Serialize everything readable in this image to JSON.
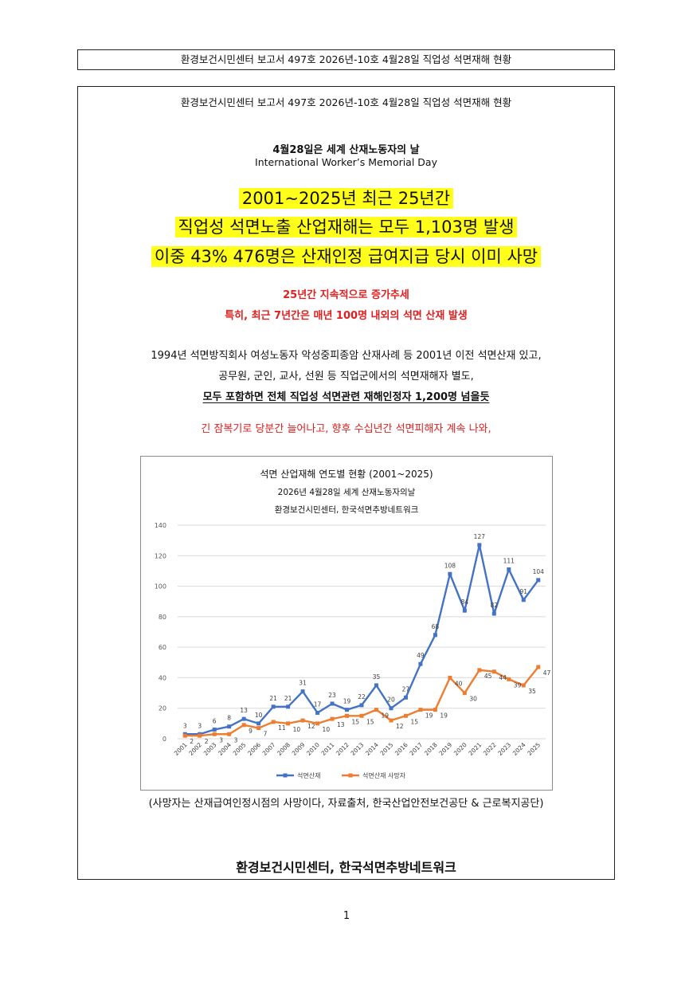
{
  "header": {
    "text": "환경보건시민센터 보고서 497호 2026년-10호 4월28일 직업성 석면재해 현황"
  },
  "report": {
    "repeat_title": "환경보건시민센터 보고서 497호 2026년-10호 4월28일 직업성 석면재해 현황",
    "memorial_ko": "4월28일은 세계 산재노동자의 날",
    "memorial_en": "International Worker’s Memorial Day",
    "headline": [
      "2001~2025년 최근 25년간",
      "직업성 석면노출 산업재해는 모두 1,103명 발생",
      "이중 43% 476명은 산재인정 급여지급 당시 이미 사망"
    ],
    "trend": [
      "25년간 지속적으로 증가추세",
      "특히, 최근 7년간은 매년 100명 내외의 석면 산재 발생"
    ],
    "body_lines": [
      "1994년 석면방직회사 여성노동자 악성중피종암 산재사례 등 2001년 이전 석면산재 있고,",
      "공무원, 군인, 교사, 선원 등 직업군에서의 석면재해자 별도,",
      "모두 포함하면 전체 직업성 석면관련 재해인정자 1,200명 넘을듯"
    ],
    "latency_note": "긴 잠복기로 당분간 늘어나고, 향후 수십년간 석면피해자 계속 나와,",
    "source_note": "(사망자는 산재급여인정시점의 사망이다, 자료출처, 한국산업안전보건공단 & 근로복지공단)",
    "footer_org": "환경보건시민센터, 한국석면추방네트워크"
  },
  "page_number": "1",
  "colors": {
    "highlight": "#ffff1a",
    "red_text": "#e02020",
    "series_blue": "#4472c4",
    "series_orange": "#ed7d31",
    "grid": "#d9d9d9"
  },
  "chart_data": {
    "type": "line",
    "title": "석면 산업재해 연도별 현황 (2001~2025)",
    "subtitle_1": "2026년 4월28일 세계 산재노동자의날",
    "subtitle_2": "환경보건시민센터, 한국석면추방네트워크",
    "x": [
      "2001",
      "2002",
      "2003",
      "2004",
      "2005",
      "2006",
      "2007",
      "2008",
      "2009",
      "2010",
      "2011",
      "2012",
      "2013",
      "2014",
      "2015",
      "2016",
      "2017",
      "2018",
      "2019",
      "2020",
      "2021",
      "2022",
      "2023",
      "2024",
      "2025"
    ],
    "series": [
      {
        "name": "석면산재",
        "color": "#4472c4",
        "values": [
          3,
          3,
          6,
          8,
          13,
          10,
          21,
          21,
          31,
          17,
          23,
          19,
          22,
          35,
          20,
          27,
          49,
          68,
          108,
          84,
          127,
          82,
          111,
          91,
          104
        ]
      },
      {
        "name": "석면산재 사망자",
        "color": "#ed7d31",
        "values": [
          2,
          2,
          3,
          3,
          9,
          7,
          11,
          10,
          12,
          10,
          13,
          15,
          15,
          19,
          12,
          15,
          19,
          19,
          40,
          30,
          45,
          44,
          39,
          35,
          47
        ]
      }
    ],
    "ylim": [
      0,
      140
    ],
    "yticks": [
      0,
      20,
      40,
      60,
      80,
      100,
      120,
      140
    ],
    "grid": true,
    "legend_position": "bottom-center"
  }
}
